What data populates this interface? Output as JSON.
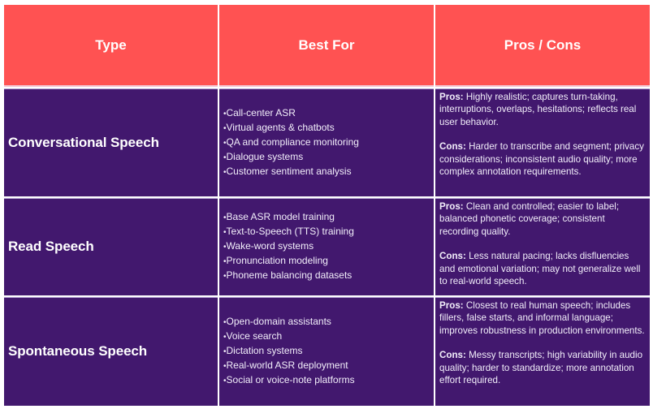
{
  "table": {
    "headers": {
      "type": "Type",
      "best_for": "Best For",
      "pros_cons": "Pros / Cons"
    },
    "rows": [
      {
        "type": "Conversational Speech",
        "best_for": [
          "Call-center ASR",
          "Virtual agents & chatbots",
          "QA and compliance monitoring",
          "Dialogue systems",
          "Customer sentiment analysis"
        ],
        "pros_label": "Pros:",
        "pros": "Highly realistic; captures turn-taking, interruptions, overlaps, hesitations; reflects real user behavior.",
        "cons_label": "Cons:",
        "cons": "Harder to transcribe and segment; privacy considerations; inconsistent audio quality; more complex annotation requirements."
      },
      {
        "type": "Read Speech",
        "best_for": [
          "Base ASR model training",
          "Text-to-Speech (TTS) training",
          "Wake-word systems",
          "Pronunciation modeling",
          "Phoneme balancing datasets"
        ],
        "pros_label": "Pros:",
        "pros": "Clean and controlled; easier to label; balanced phonetic coverage; consistent recording quality.",
        "cons_label": "Cons:",
        "cons": "Less natural pacing; lacks disfluencies and emotional variation; may not generalize well to real-world speech."
      },
      {
        "type": "Spontaneous Speech",
        "best_for": [
          "Open-domain assistants",
          "Voice search",
          "Dictation systems",
          "Real-world ASR deployment",
          "Social or voice-note platforms"
        ],
        "pros_label": "Pros:",
        "pros": "Closest to real human speech; includes fillers, false starts, and informal language; improves robustness in production environments.",
        "cons_label": "Cons:",
        "cons": "Messy transcripts; high variability in audio quality; harder to standardize; more annotation effort required."
      }
    ]
  },
  "colors": {
    "header_bg": "#ff5252",
    "body_bg": "#42186e",
    "text": "#ffffff",
    "border": "#ffffff"
  }
}
